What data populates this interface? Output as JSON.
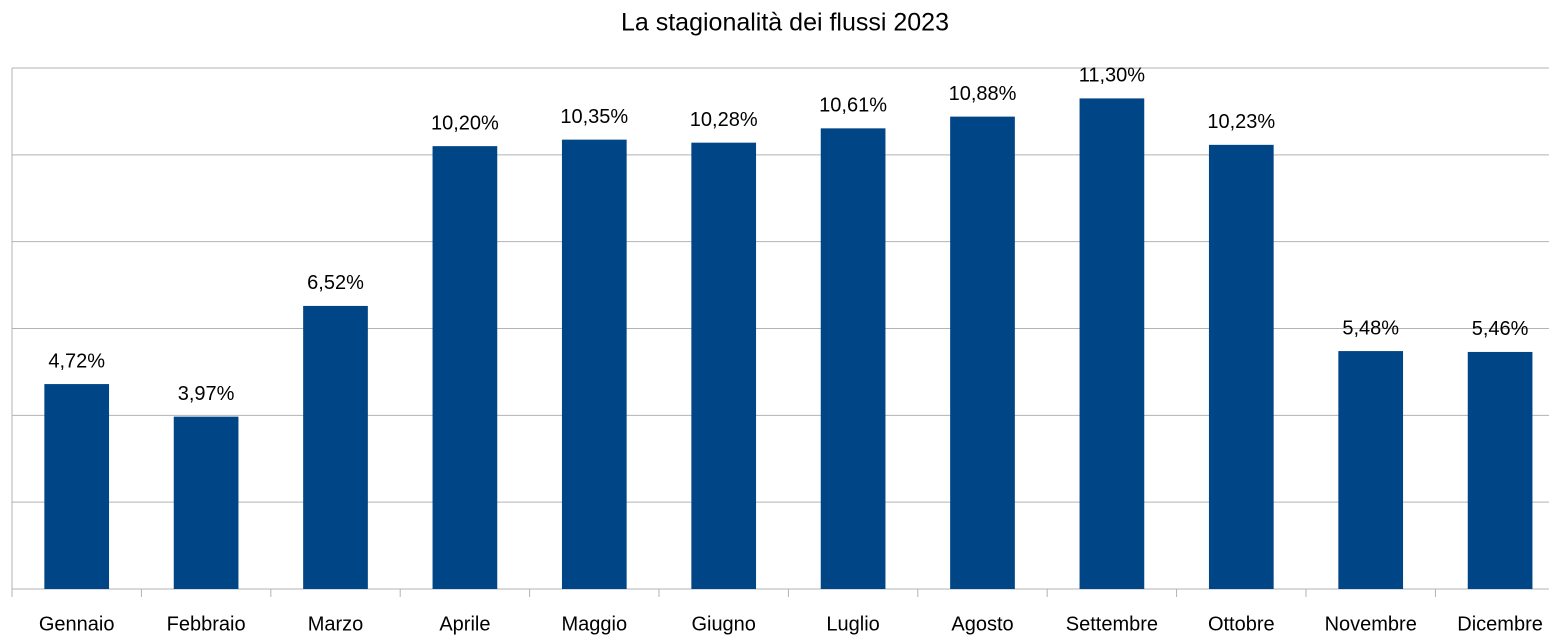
{
  "chart_data": {
    "type": "bar",
    "title": "La stagionalità dei flussi 2023",
    "categories": [
      "Gennaio",
      "Febbraio",
      "Marzo",
      "Aprile",
      "Maggio",
      "Giugno",
      "Luglio",
      "Agosto",
      "Settembre",
      "Ottobre",
      "Novembre",
      "Dicembre"
    ],
    "values": [
      4.72,
      3.97,
      6.52,
      10.2,
      10.35,
      10.28,
      10.61,
      10.88,
      11.3,
      10.23,
      5.48,
      5.46
    ],
    "value_labels": [
      "4,72%",
      "3,97%",
      "6,52%",
      "10,20%",
      "10,35%",
      "10,28%",
      "10,61%",
      "10,88%",
      "11,30%",
      "10,23%",
      "5,48%",
      "5,46%"
    ],
    "color": "#004586",
    "ylim": [
      0,
      12
    ],
    "yticks": [
      0,
      2,
      4,
      6,
      8,
      10,
      12
    ],
    "grid": true
  }
}
